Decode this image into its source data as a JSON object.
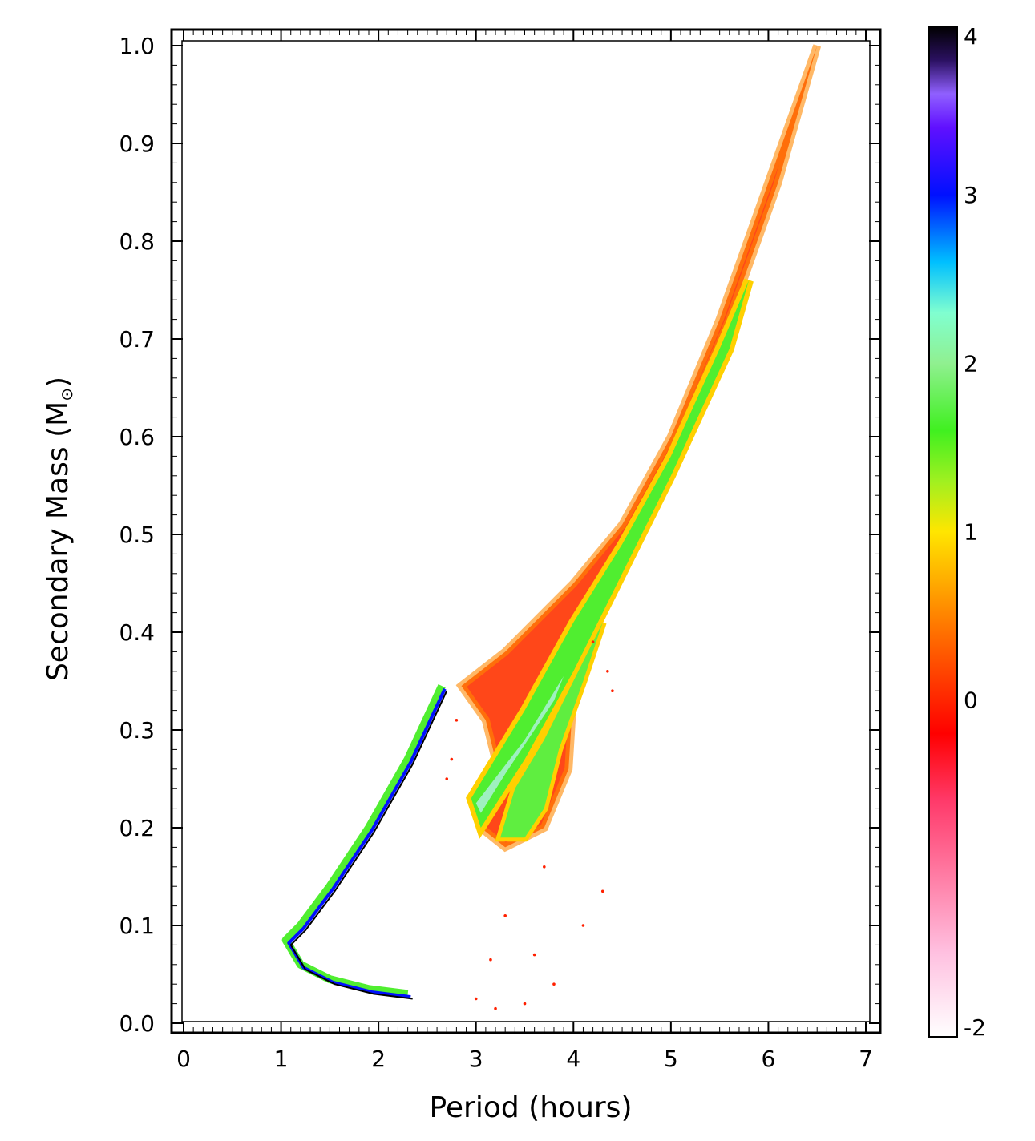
{
  "chart_data": {
    "type": "heatmap",
    "title": "",
    "xlabel": "Period (hours)",
    "ylabel": "Secondary Mass (M",
    "ylabel_sub": "⊙",
    "ylabel_close": ")",
    "xlim": [
      0,
      7
    ],
    "ylim": [
      0,
      1.0
    ],
    "x_ticks": [
      0,
      1,
      2,
      3,
      4,
      5,
      6,
      7
    ],
    "x_tick_labels": [
      "0",
      "1",
      "2",
      "3",
      "4",
      "5",
      "6",
      "7"
    ],
    "y_ticks": [
      0.0,
      0.1,
      0.2,
      0.3,
      0.4,
      0.5,
      0.6,
      0.7,
      0.8,
      0.9,
      1.0
    ],
    "y_tick_labels": [
      "0.0",
      "0.1",
      "0.2",
      "0.3",
      "0.4",
      "0.5",
      "0.6",
      "0.7",
      "0.8",
      "0.9",
      "1.0"
    ],
    "colorbar": {
      "range": [
        -2,
        4
      ],
      "ticks": [
        -2,
        0,
        1,
        2,
        3,
        4
      ],
      "tick_labels": [
        "-2",
        "0",
        "1",
        "2",
        "3",
        "4"
      ],
      "stops": [
        {
          "v": -2.0,
          "color": "#ffffff"
        },
        {
          "v": -1.5,
          "color": "#ffc0e0"
        },
        {
          "v": -0.6,
          "color": "#ff3a6a"
        },
        {
          "v": -0.2,
          "color": "#ff0000"
        },
        {
          "v": 0.4,
          "color": "#ff7000"
        },
        {
          "v": 1.0,
          "color": "#ffe600"
        },
        {
          "v": 1.3,
          "color": "#a0f020"
        },
        {
          "v": 1.6,
          "color": "#40f020"
        },
        {
          "v": 2.0,
          "color": "#90f090"
        },
        {
          "v": 2.3,
          "color": "#80ffd0"
        },
        {
          "v": 2.6,
          "color": "#00c0ff"
        },
        {
          "v": 3.0,
          "color": "#0010ff"
        },
        {
          "v": 3.4,
          "color": "#6010ff"
        },
        {
          "v": 3.6,
          "color": "#9060ff"
        },
        {
          "v": 3.8,
          "color": "#2a1060"
        },
        {
          "v": 4.0,
          "color": "#000000"
        }
      ]
    },
    "regions": {
      "main_envelope_left_edge": [
        [
          2.85,
          0.345
        ],
        [
          3.3,
          0.38
        ],
        [
          4.0,
          0.45
        ],
        [
          4.5,
          0.51
        ],
        [
          5.0,
          0.6
        ],
        [
          5.5,
          0.72
        ],
        [
          6.0,
          0.86
        ],
        [
          6.5,
          1.0
        ]
      ],
      "main_envelope_right_edge": [
        [
          6.5,
          1.0
        ],
        [
          6.1,
          0.86
        ],
        [
          5.6,
          0.72
        ],
        [
          5.0,
          0.58
        ],
        [
          4.5,
          0.48
        ],
        [
          4.2,
          0.41
        ],
        [
          4.0,
          0.34
        ],
        [
          3.95,
          0.26
        ],
        [
          3.7,
          0.2
        ],
        [
          3.3,
          0.18
        ],
        [
          3.05,
          0.2
        ],
        [
          3.2,
          0.27
        ],
        [
          3.1,
          0.31
        ]
      ],
      "upper_green_band": [
        [
          2.95,
          0.23
        ],
        [
          3.5,
          0.32
        ],
        [
          4.0,
          0.41
        ],
        [
          4.5,
          0.49
        ],
        [
          5.0,
          0.58
        ],
        [
          5.5,
          0.69
        ],
        [
          5.8,
          0.76
        ],
        [
          5.6,
          0.69
        ],
        [
          5.0,
          0.56
        ],
        [
          4.5,
          0.46
        ],
        [
          4.0,
          0.36
        ],
        [
          3.5,
          0.27
        ],
        [
          3.05,
          0.2
        ]
      ],
      "lower_green_band": [
        [
          3.25,
          0.19
        ],
        [
          3.4,
          0.24
        ],
        [
          3.7,
          0.29
        ],
        [
          4.0,
          0.35
        ],
        [
          4.3,
          0.41
        ],
        [
          4.1,
          0.35
        ],
        [
          3.85,
          0.28
        ],
        [
          3.7,
          0.22
        ],
        [
          3.5,
          0.19
        ]
      ],
      "short_period_track": [
        [
          2.65,
          0.345
        ],
        [
          2.3,
          0.27
        ],
        [
          1.9,
          0.2
        ],
        [
          1.5,
          0.14
        ],
        [
          1.2,
          0.1
        ],
        [
          1.05,
          0.085
        ],
        [
          1.2,
          0.06
        ],
        [
          1.5,
          0.045
        ],
        [
          1.9,
          0.035
        ],
        [
          2.3,
          0.03
        ]
      ],
      "sparse_points": [
        [
          4.3,
          0.135
        ],
        [
          4.1,
          0.1
        ],
        [
          3.3,
          0.11
        ],
        [
          3.15,
          0.065
        ],
        [
          3.5,
          0.02
        ],
        [
          3.2,
          0.015
        ],
        [
          3.0,
          0.025
        ],
        [
          3.8,
          0.04
        ],
        [
          3.6,
          0.07
        ],
        [
          4.35,
          0.36
        ],
        [
          4.4,
          0.34
        ],
        [
          4.2,
          0.39
        ],
        [
          2.8,
          0.31
        ],
        [
          2.75,
          0.27
        ],
        [
          2.7,
          0.25
        ],
        [
          3.7,
          0.16
        ]
      ]
    }
  }
}
